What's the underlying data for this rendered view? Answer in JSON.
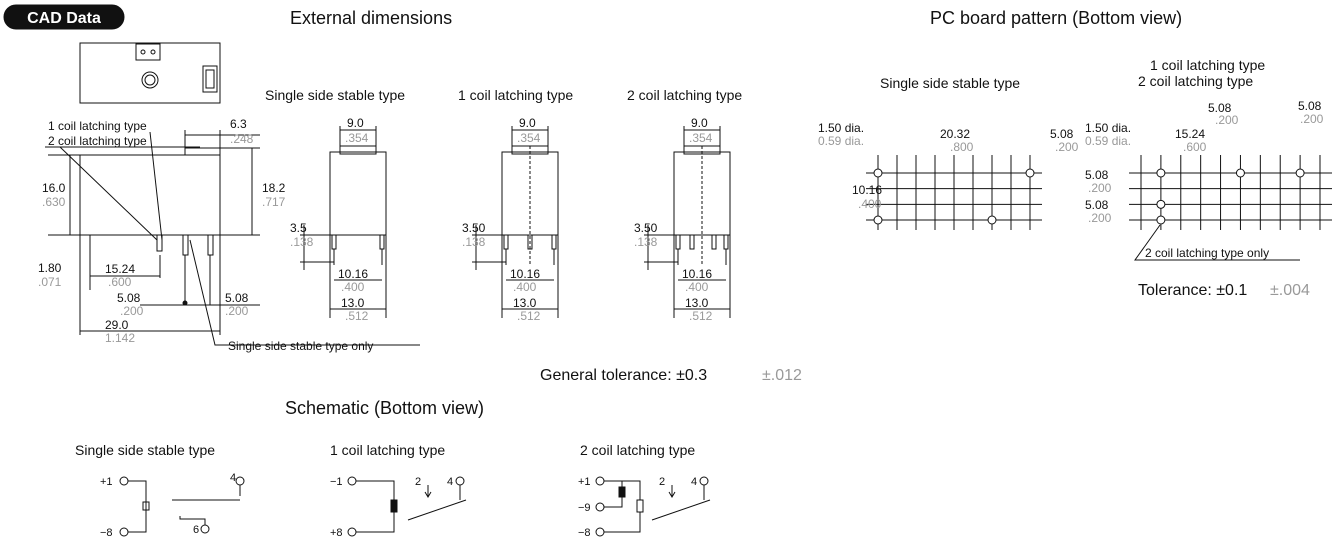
{
  "header": {
    "badge": "CAD Data",
    "external_title": "External dimensions",
    "pcb_title": "PC board pattern (Bottom view)"
  },
  "external": {
    "types": [
      "Single side stable type",
      "1 coil latching type",
      "2 coil latching type"
    ],
    "side_view": {
      "callout_1": "1 coil latching type",
      "callout_2": "2 coil latching type",
      "top_width": [
        "6.3",
        ".248"
      ],
      "height": [
        "16.0",
        ".630"
      ],
      "total_height": [
        "18.2",
        ".717"
      ],
      "pin_offset": [
        "1.80",
        ".071"
      ],
      "pitch_a": [
        "15.24",
        ".600"
      ],
      "pitch_b": [
        "5.08",
        ".200"
      ],
      "pitch_c": [
        "5.08",
        ".200"
      ],
      "length": [
        "29.0",
        "1.142"
      ],
      "note": "Single side stable type only"
    },
    "front_views": [
      {
        "top": [
          "9.0",
          ".354"
        ],
        "pin": [
          "3.5",
          ".138"
        ],
        "pitch": [
          "10.16",
          ".400"
        ],
        "width": [
          "13.0",
          ".512"
        ]
      },
      {
        "top": [
          "9.0",
          ".354"
        ],
        "pin": [
          "3.50",
          ".138"
        ],
        "pitch": [
          "10.16",
          ".400"
        ],
        "width": [
          "13.0",
          ".512"
        ]
      },
      {
        "top": [
          "9.0",
          ".354"
        ],
        "pin": [
          "3.50",
          ".138"
        ],
        "pitch": [
          "10.16",
          ".400"
        ],
        "width": [
          "13.0",
          ".512"
        ]
      }
    ],
    "tolerance": {
      "label": "General tolerance: ±0.3",
      "inch": "±.012"
    }
  },
  "pcb": {
    "left": {
      "type": "Single side stable type",
      "dia_a": "1.50 dia.",
      "dia_b": "0.59 dia.",
      "span": [
        "20.32",
        ".800"
      ],
      "pitch": [
        "5.08",
        ".200"
      ],
      "height": [
        "10.16",
        ".400"
      ]
    },
    "right": {
      "type_1": "1 coil latching type",
      "type_2": "2 coil latching type",
      "top_a": [
        "5.08",
        ".200"
      ],
      "top_b": [
        "5.08",
        ".200"
      ],
      "dia_a": "1.50 dia.",
      "dia_b": "0.59 dia.",
      "span": [
        "15.24",
        ".600"
      ],
      "row_a": [
        "5.08",
        ".200"
      ],
      "row_b": [
        "5.08",
        ".200"
      ],
      "note": "2 coil latching type only"
    },
    "tolerance": {
      "label": "Tolerance: ±0.1",
      "inch": "±.004"
    }
  },
  "schematic": {
    "title": "Schematic (Bottom view)",
    "types": [
      "Single side stable type",
      "1 coil latching type",
      "2 coil latching type"
    ],
    "single": [
      "+1",
      "4",
      "−8",
      "6"
    ],
    "one_coil": [
      "−1",
      "2",
      "4",
      "+8"
    ],
    "two_coil": [
      "+1",
      "2",
      "4",
      "−9",
      "−8"
    ]
  }
}
